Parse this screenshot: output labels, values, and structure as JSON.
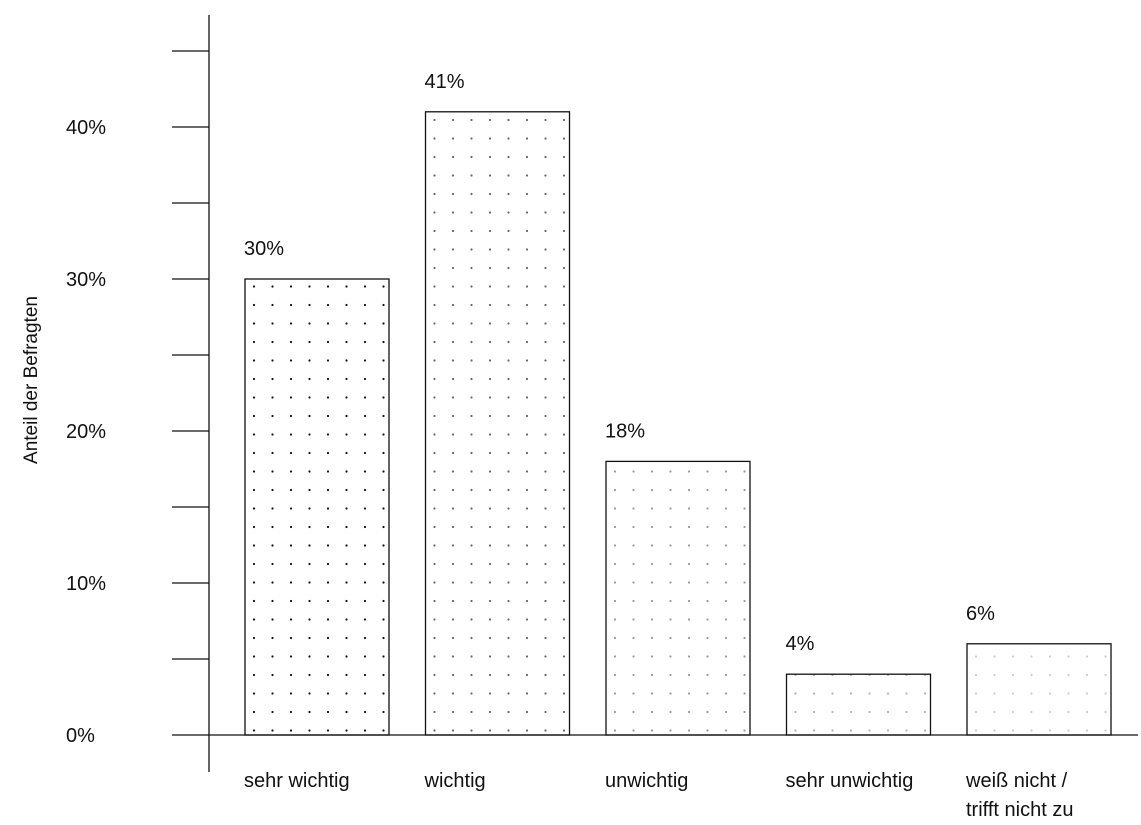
{
  "chart_data": {
    "type": "bar",
    "ylabel": "Anteil der Befragten",
    "ylim": [
      0,
      48
    ],
    "yticks": [
      0,
      10,
      20,
      30,
      40
    ],
    "ytick_labels": [
      "0%",
      "10%",
      "20%",
      "30%",
      "40%"
    ],
    "yticks_minor": [
      5,
      15,
      25,
      35,
      45
    ],
    "categories": [
      [
        "sehr wichtig"
      ],
      [
        "wichtig"
      ],
      [
        "unwichtig"
      ],
      [
        "sehr unwichtig"
      ],
      [
        "weiß nicht /",
        "trifft nicht zu"
      ]
    ],
    "values": [
      30,
      41,
      18,
      4,
      6
    ],
    "value_labels": [
      "30%",
      "41%",
      "18%",
      "4%",
      "6%"
    ],
    "dot_colors": [
      "#111111",
      "#666666",
      "#999999",
      "#b3b3b3",
      "#cccccc"
    ],
    "bar_fill": "#ffffff",
    "bar_stroke": "#111111"
  }
}
